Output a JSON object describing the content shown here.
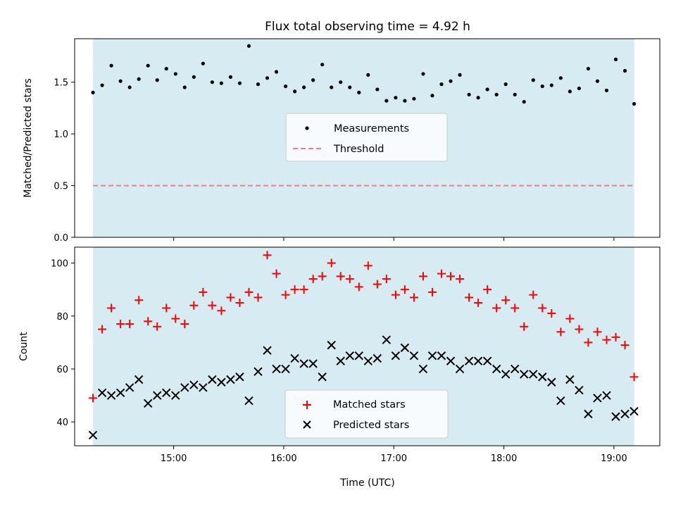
{
  "chart_data": [
    {
      "type": "scatter",
      "title": "Flux total observing time = 4.92 h",
      "ylabel": "Matched/Predicted stars",
      "ylim": [
        0,
        1.92
      ],
      "yticks": [
        0.0,
        0.5,
        1.0,
        1.5
      ],
      "ytick_labels": [
        "0.0",
        "0.5",
        "1.0",
        "1.5"
      ],
      "legend_placement": "center",
      "shaded_interval": [
        "14:16",
        "19:11"
      ],
      "threshold": {
        "name": "Threshold",
        "value": 0.5,
        "color": "#f08080",
        "style": "dashed"
      },
      "series": [
        {
          "name": "Measurements",
          "marker": "dot",
          "color": "#000000",
          "x": [
            "14:16",
            "14:21",
            "14:26",
            "14:31",
            "14:36",
            "14:41",
            "14:46",
            "14:51",
            "14:56",
            "15:01",
            "15:06",
            "15:11",
            "15:16",
            "15:21",
            "15:26",
            "15:31",
            "15:36",
            "15:41",
            "15:46",
            "15:51",
            "15:56",
            "16:01",
            "16:06",
            "16:11",
            "16:16",
            "16:21",
            "16:26",
            "16:31",
            "16:36",
            "16:41",
            "16:46",
            "16:51",
            "16:56",
            "17:01",
            "17:06",
            "17:11",
            "17:16",
            "17:21",
            "17:26",
            "17:31",
            "17:36",
            "17:41",
            "17:46",
            "17:51",
            "17:56",
            "18:01",
            "18:06",
            "18:11",
            "18:16",
            "18:21",
            "18:26",
            "18:31",
            "18:36",
            "18:41",
            "18:46",
            "18:51",
            "18:56",
            "19:01",
            "19:06",
            "19:11"
          ],
          "y": [
            1.4,
            1.47,
            1.66,
            1.51,
            1.45,
            1.53,
            1.66,
            1.52,
            1.63,
            1.58,
            1.45,
            1.55,
            1.68,
            1.5,
            1.49,
            1.55,
            1.49,
            1.85,
            1.48,
            1.54,
            1.6,
            1.46,
            1.41,
            1.45,
            1.52,
            1.67,
            1.45,
            1.5,
            1.45,
            1.4,
            1.57,
            1.43,
            1.32,
            1.35,
            1.32,
            1.34,
            1.58,
            1.37,
            1.48,
            1.51,
            1.57,
            1.38,
            1.35,
            1.43,
            1.38,
            1.48,
            1.38,
            1.31,
            1.52,
            1.46,
            1.47,
            1.54,
            1.41,
            1.44,
            1.63,
            1.51,
            1.42,
            1.72,
            1.61,
            1.29
          ]
        }
      ]
    },
    {
      "type": "scatter",
      "xlabel": "Time (UTC)",
      "ylabel": "Count",
      "ylim": [
        31,
        106
      ],
      "yticks": [
        40,
        60,
        80,
        100
      ],
      "ytick_labels": [
        "40",
        "60",
        "80",
        "100"
      ],
      "xlim": [
        "14:06",
        "19:25"
      ],
      "xticks": [
        "15:00",
        "16:00",
        "17:00",
        "18:00",
        "19:00"
      ],
      "legend_placement": "lower center",
      "shaded_interval": [
        "14:16",
        "19:11"
      ],
      "series": [
        {
          "name": "Matched stars",
          "marker": "plus",
          "color": "#ff0000",
          "x": [
            "14:16",
            "14:21",
            "14:26",
            "14:31",
            "14:36",
            "14:41",
            "14:46",
            "14:51",
            "14:56",
            "15:01",
            "15:06",
            "15:11",
            "15:16",
            "15:21",
            "15:26",
            "15:31",
            "15:36",
            "15:41",
            "15:46",
            "15:51",
            "15:56",
            "16:01",
            "16:06",
            "16:11",
            "16:16",
            "16:21",
            "16:26",
            "16:31",
            "16:36",
            "16:41",
            "16:46",
            "16:51",
            "16:56",
            "17:01",
            "17:06",
            "17:11",
            "17:16",
            "17:21",
            "17:26",
            "17:31",
            "17:36",
            "17:41",
            "17:46",
            "17:51",
            "17:56",
            "18:01",
            "18:06",
            "18:11",
            "18:16",
            "18:21",
            "18:26",
            "18:31",
            "18:36",
            "18:41",
            "18:46",
            "18:51",
            "18:56",
            "19:01",
            "19:06",
            "19:11"
          ],
          "y": [
            49,
            75,
            83,
            77,
            77,
            86,
            78,
            76,
            83,
            79,
            77,
            84,
            89,
            84,
            82,
            87,
            85,
            89,
            87,
            103,
            96,
            88,
            90,
            90,
            94,
            95,
            100,
            95,
            94,
            91,
            99,
            92,
            94,
            88,
            90,
            87,
            95,
            89,
            96,
            95,
            94,
            87,
            85,
            90,
            83,
            86,
            83,
            76,
            88,
            83,
            81,
            74,
            79,
            75,
            70,
            74,
            71,
            72,
            69,
            57
          ]
        },
        {
          "name": "Predicted stars",
          "marker": "x",
          "color": "#000000",
          "x": [
            "14:16",
            "14:21",
            "14:26",
            "14:31",
            "14:36",
            "14:41",
            "14:46",
            "14:51",
            "14:56",
            "15:01",
            "15:06",
            "15:11",
            "15:16",
            "15:21",
            "15:26",
            "15:31",
            "15:36",
            "15:41",
            "15:46",
            "15:51",
            "15:56",
            "16:01",
            "16:06",
            "16:11",
            "16:16",
            "16:21",
            "16:26",
            "16:31",
            "16:36",
            "16:41",
            "16:46",
            "16:51",
            "16:56",
            "17:01",
            "17:06",
            "17:11",
            "17:16",
            "17:21",
            "17:26",
            "17:31",
            "17:36",
            "17:41",
            "17:46",
            "17:51",
            "17:56",
            "18:01",
            "18:06",
            "18:11",
            "18:16",
            "18:21",
            "18:26",
            "18:31",
            "18:36",
            "18:41",
            "18:46",
            "18:51",
            "18:56",
            "19:01",
            "19:06",
            "19:11"
          ],
          "y": [
            35,
            51,
            50,
            51,
            53,
            56,
            47,
            50,
            51,
            50,
            53,
            54,
            53,
            56,
            55,
            56,
            57,
            48,
            59,
            67,
            60,
            60,
            64,
            62,
            62,
            57,
            69,
            63,
            65,
            65,
            63,
            64,
            71,
            65,
            68,
            65,
            60,
            65,
            65,
            63,
            60,
            63,
            63,
            63,
            60,
            58,
            60,
            58,
            58,
            57,
            55,
            48,
            56,
            52,
            43,
            49,
            50,
            42,
            43,
            44
          ]
        }
      ]
    }
  ]
}
